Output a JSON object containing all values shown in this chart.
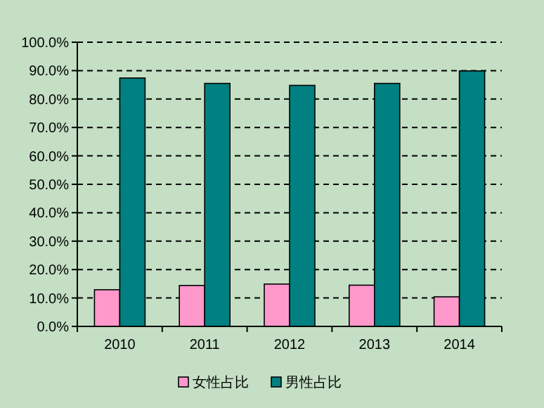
{
  "chart_data": {
    "type": "bar",
    "categories": [
      "2010",
      "2011",
      "2012",
      "2013",
      "2014"
    ],
    "series": [
      {
        "name": "女性占比",
        "color": "#ff99cc",
        "values": [
          12.9,
          14.4,
          14.9,
          14.5,
          10.4
        ]
      },
      {
        "name": "男性占比",
        "color": "#008080",
        "values": [
          87.4,
          85.5,
          84.8,
          85.5,
          89.9
        ]
      }
    ],
    "ylim": [
      0,
      100
    ],
    "yticks": [
      {
        "value": 0,
        "label": "0.0%"
      },
      {
        "value": 10,
        "label": "10.0%"
      },
      {
        "value": 20,
        "label": "20.0%"
      },
      {
        "value": 30,
        "label": "30.0%"
      },
      {
        "value": 40,
        "label": "40.0%"
      },
      {
        "value": 50,
        "label": "50.0%"
      },
      {
        "value": 60,
        "label": "60.0%"
      },
      {
        "value": 70,
        "label": "70.0%"
      },
      {
        "value": 80,
        "label": "80.0%"
      },
      {
        "value": 90,
        "label": "90.0%"
      },
      {
        "value": 100,
        "label": "100.0%"
      }
    ],
    "grid": "y",
    "legend": "bottom"
  }
}
